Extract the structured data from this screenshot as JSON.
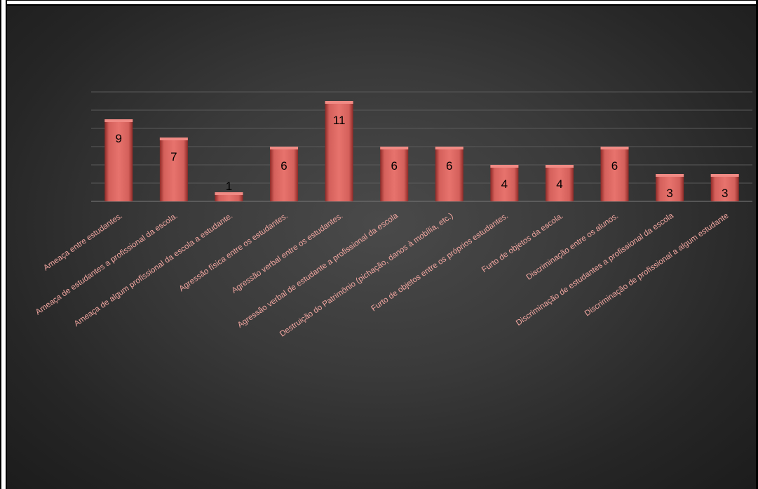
{
  "chart_data": {
    "type": "bar",
    "categories": [
      "Ameaça entre estudantes.",
      "Ameaça de estudantes a profissional da escola.",
      "Ameaça de algum profissional da escola a estudante.",
      "Agressão física entre os estudantes.",
      "Agressão verbal entre os estudantes.",
      "Agressão verbal de estudante a profissional da escola",
      "Destruição do Patrimônio (pichação, danos à mobília, etc.)",
      "Furto de objetos entre os próprios estudantes.",
      "Furto de objetos da escola.",
      "Discriminação entre os alunos.",
      "Discriminação de estudantes a profissional da escola",
      "Discriminação de profissional a algum estudante"
    ],
    "values": [
      9,
      7,
      1,
      6,
      11,
      6,
      6,
      4,
      4,
      6,
      3,
      3
    ],
    "ylim": [
      0,
      12
    ],
    "grid": true,
    "legend": "none",
    "bar_color": "#c0504d",
    "label_color": "#f2a6a0",
    "background": "#3a3a3a"
  }
}
